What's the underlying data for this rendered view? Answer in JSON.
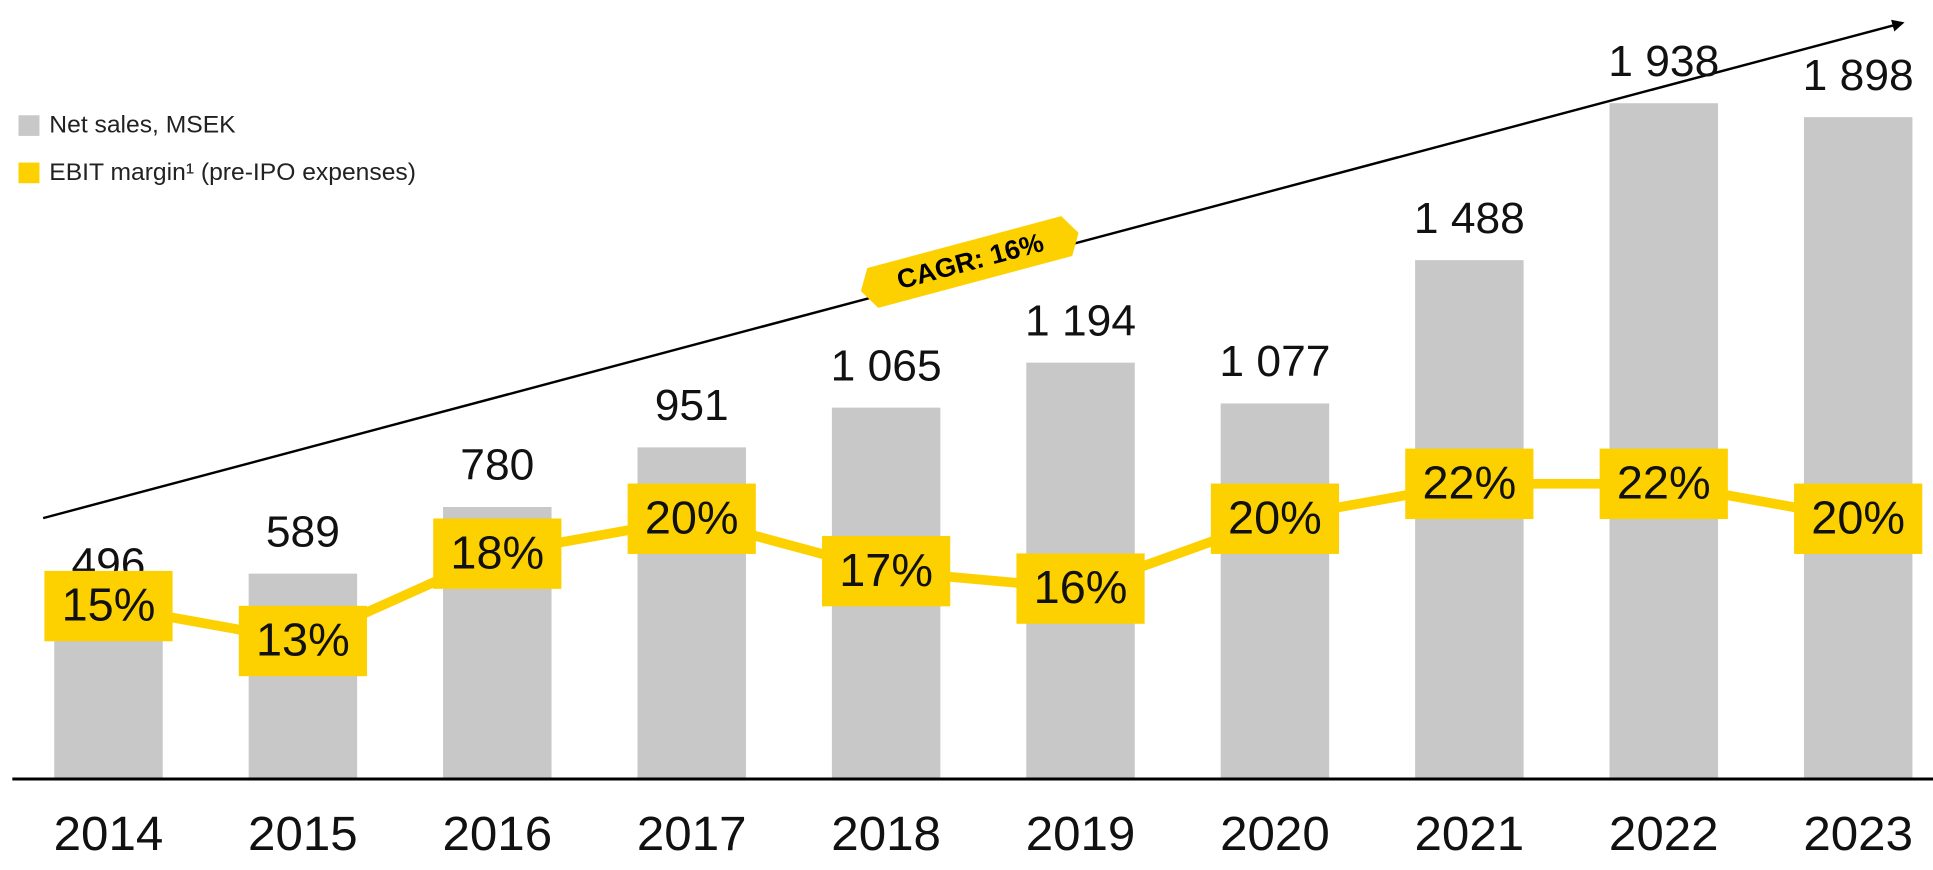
{
  "chart_data": {
    "type": "bar",
    "categories": [
      "2014",
      "2015",
      "2016",
      "2017",
      "2018",
      "2019",
      "2020",
      "2021",
      "2022",
      "2023"
    ],
    "series": [
      {
        "name": "Net sales, MSEK",
        "color": "#c8c8c8",
        "type": "bar",
        "values": [
          496,
          589,
          780,
          951,
          1065,
          1194,
          1077,
          1488,
          1938,
          1898
        ],
        "value_labels": [
          "496",
          "589",
          "780",
          "951",
          "1 065",
          "1 194",
          "1 077",
          "1 488",
          "1 938",
          "1 898"
        ]
      },
      {
        "name": "EBIT margin¹ (pre-IPO expenses)",
        "color": "#fdd100",
        "type": "line",
        "axis": "y2",
        "values": [
          15,
          13,
          18,
          20,
          17,
          16,
          20,
          22,
          22,
          20
        ],
        "value_labels": [
          "15%",
          "13%",
          "18%",
          "20%",
          "17%",
          "16%",
          "20%",
          "22%",
          "22%",
          "20%"
        ]
      }
    ],
    "ylim": [
      0,
      2234
    ],
    "y2lim": [
      5.1,
      49.7
    ],
    "annotation": "CAGR: 16%"
  }
}
